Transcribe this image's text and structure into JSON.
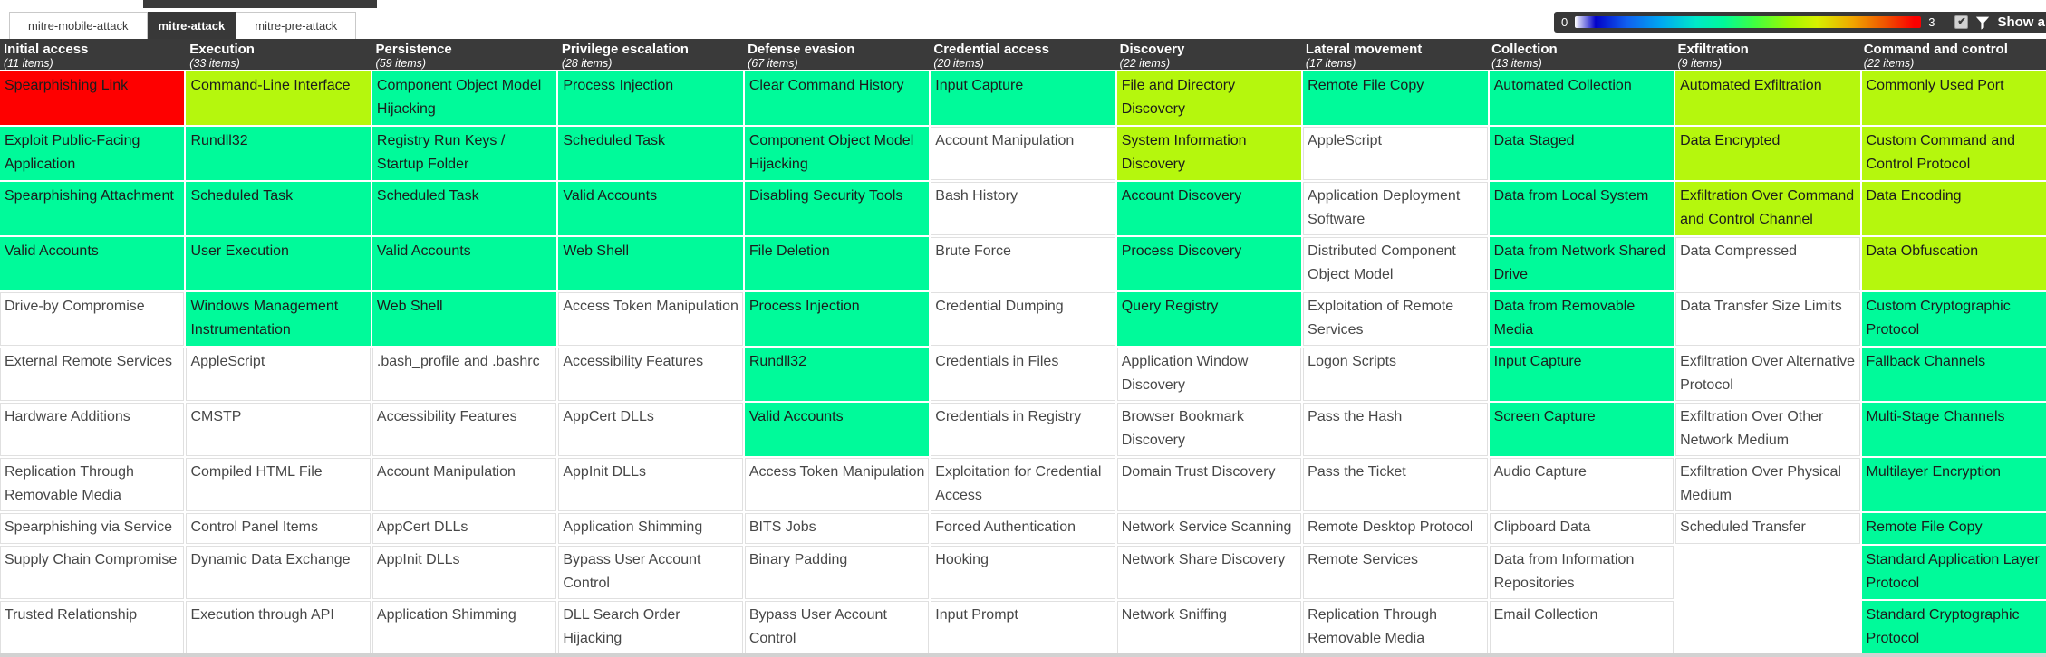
{
  "tabs": [
    {
      "label": "mitre-mobile-attack",
      "active": false
    },
    {
      "label": "mitre-attack",
      "active": true
    },
    {
      "label": "mitre-pre-attack",
      "active": false
    }
  ],
  "controls": {
    "gradient_min": "0",
    "gradient_max": "3",
    "checkbox_checked": "✔",
    "filter_icon": "funnel-icon",
    "show_all_label": "Show all"
  },
  "colors": {
    "red": "#fe0000",
    "green": "#00fa9a",
    "chartreuse": "#b5f70d",
    "white": "#ffffff",
    "header_bg": "#3a3a3a"
  },
  "matrix": {
    "columns": [
      {
        "name": "Initial access",
        "count": "(11 items)",
        "techniques": [
          {
            "label": "Spearphishing Link",
            "color": "r"
          },
          {
            "label": "Exploit Public-Facing Application",
            "color": "g"
          },
          {
            "label": "Spearphishing Attachment",
            "color": "g"
          },
          {
            "label": "Valid Accounts",
            "color": "g"
          },
          {
            "label": "Drive-by Compromise",
            "color": "w"
          },
          {
            "label": "External Remote Services",
            "color": "w"
          },
          {
            "label": "Hardware Additions",
            "color": "w"
          },
          {
            "label": "Replication Through Removable Media",
            "color": "w"
          },
          {
            "label": "Spearphishing via Service",
            "color": "w"
          },
          {
            "label": "Supply Chain Compromise",
            "color": "w"
          },
          {
            "label": "Trusted Relationship",
            "color": "w"
          }
        ]
      },
      {
        "name": "Execution",
        "count": "(33 items)",
        "techniques": [
          {
            "label": "Command-Line Interface",
            "color": "y"
          },
          {
            "label": "Rundll32",
            "color": "g"
          },
          {
            "label": "Scheduled Task",
            "color": "g"
          },
          {
            "label": "User Execution",
            "color": "g"
          },
          {
            "label": "Windows Management Instrumentation",
            "color": "g"
          },
          {
            "label": "AppleScript",
            "color": "w"
          },
          {
            "label": "CMSTP",
            "color": "w"
          },
          {
            "label": "Compiled HTML File",
            "color": "w"
          },
          {
            "label": "Control Panel Items",
            "color": "w"
          },
          {
            "label": "Dynamic Data Exchange",
            "color": "w"
          },
          {
            "label": "Execution through API",
            "color": "w"
          }
        ]
      },
      {
        "name": "Persistence",
        "count": "(59 items)",
        "techniques": [
          {
            "label": "Component Object Model Hijacking",
            "color": "g"
          },
          {
            "label": "Registry Run Keys / Startup Folder",
            "color": "g"
          },
          {
            "label": "Scheduled Task",
            "color": "g"
          },
          {
            "label": "Valid Accounts",
            "color": "g"
          },
          {
            "label": "Web Shell",
            "color": "g"
          },
          {
            "label": ".bash_profile and .bashrc",
            "color": "w"
          },
          {
            "label": "Accessibility Features",
            "color": "w"
          },
          {
            "label": "Account Manipulation",
            "color": "w"
          },
          {
            "label": "AppCert DLLs",
            "color": "w"
          },
          {
            "label": "AppInit DLLs",
            "color": "w"
          },
          {
            "label": "Application Shimming",
            "color": "w"
          }
        ]
      },
      {
        "name": "Privilege escalation",
        "count": "(28 items)",
        "techniques": [
          {
            "label": "Process Injection",
            "color": "g"
          },
          {
            "label": "Scheduled Task",
            "color": "g"
          },
          {
            "label": "Valid Accounts",
            "color": "g"
          },
          {
            "label": "Web Shell",
            "color": "g"
          },
          {
            "label": "Access Token Manipulation",
            "color": "w"
          },
          {
            "label": "Accessibility Features",
            "color": "w"
          },
          {
            "label": "AppCert DLLs",
            "color": "w"
          },
          {
            "label": "AppInit DLLs",
            "color": "w"
          },
          {
            "label": "Application Shimming",
            "color": "w"
          },
          {
            "label": "Bypass User Account Control",
            "color": "w"
          },
          {
            "label": "DLL Search Order Hijacking",
            "color": "w"
          }
        ]
      },
      {
        "name": "Defense evasion",
        "count": "(67 items)",
        "techniques": [
          {
            "label": "Clear Command History",
            "color": "g"
          },
          {
            "label": "Component Object Model Hijacking",
            "color": "g"
          },
          {
            "label": "Disabling Security Tools",
            "color": "g"
          },
          {
            "label": "File Deletion",
            "color": "g"
          },
          {
            "label": "Process Injection",
            "color": "g"
          },
          {
            "label": "Rundll32",
            "color": "g"
          },
          {
            "label": "Valid Accounts",
            "color": "g"
          },
          {
            "label": "Access Token Manipulation",
            "color": "w"
          },
          {
            "label": "BITS Jobs",
            "color": "w"
          },
          {
            "label": "Binary Padding",
            "color": "w"
          },
          {
            "label": "Bypass User Account Control",
            "color": "w"
          }
        ]
      },
      {
        "name": "Credential access",
        "count": "(20 items)",
        "techniques": [
          {
            "label": "Input Capture",
            "color": "g"
          },
          {
            "label": "Account Manipulation",
            "color": "w"
          },
          {
            "label": "Bash History",
            "color": "w"
          },
          {
            "label": "Brute Force",
            "color": "w"
          },
          {
            "label": "Credential Dumping",
            "color": "w"
          },
          {
            "label": "Credentials in Files",
            "color": "w"
          },
          {
            "label": "Credentials in Registry",
            "color": "w"
          },
          {
            "label": "Exploitation for Credential Access",
            "color": "w"
          },
          {
            "label": "Forced Authentication",
            "color": "w"
          },
          {
            "label": "Hooking",
            "color": "w"
          },
          {
            "label": "Input Prompt",
            "color": "w"
          }
        ]
      },
      {
        "name": "Discovery",
        "count": "(22 items)",
        "techniques": [
          {
            "label": "File and Directory Discovery",
            "color": "y"
          },
          {
            "label": "System Information Discovery",
            "color": "y"
          },
          {
            "label": "Account Discovery",
            "color": "g"
          },
          {
            "label": "Process Discovery",
            "color": "g"
          },
          {
            "label": "Query Registry",
            "color": "g"
          },
          {
            "label": "Application Window Discovery",
            "color": "w"
          },
          {
            "label": "Browser Bookmark Discovery",
            "color": "w"
          },
          {
            "label": "Domain Trust Discovery",
            "color": "w"
          },
          {
            "label": "Network Service Scanning",
            "color": "w"
          },
          {
            "label": "Network Share Discovery",
            "color": "w"
          },
          {
            "label": "Network Sniffing",
            "color": "w"
          }
        ]
      },
      {
        "name": "Lateral movement",
        "count": "(17 items)",
        "techniques": [
          {
            "label": "Remote File Copy",
            "color": "g"
          },
          {
            "label": "AppleScript",
            "color": "w"
          },
          {
            "label": "Application Deployment Software",
            "color": "w"
          },
          {
            "label": "Distributed Component Object Model",
            "color": "w"
          },
          {
            "label": "Exploitation of Remote Services",
            "color": "w"
          },
          {
            "label": "Logon Scripts",
            "color": "w"
          },
          {
            "label": "Pass the Hash",
            "color": "w"
          },
          {
            "label": "Pass the Ticket",
            "color": "w"
          },
          {
            "label": "Remote Desktop Protocol",
            "color": "w"
          },
          {
            "label": "Remote Services",
            "color": "w"
          },
          {
            "label": "Replication Through Removable Media",
            "color": "w"
          }
        ]
      },
      {
        "name": "Collection",
        "count": "(13 items)",
        "techniques": [
          {
            "label": "Automated Collection",
            "color": "g"
          },
          {
            "label": "Data Staged",
            "color": "g"
          },
          {
            "label": "Data from Local System",
            "color": "g"
          },
          {
            "label": "Data from Network Shared Drive",
            "color": "g"
          },
          {
            "label": "Data from Removable Media",
            "color": "g"
          },
          {
            "label": "Input Capture",
            "color": "g"
          },
          {
            "label": "Screen Capture",
            "color": "g"
          },
          {
            "label": "Audio Capture",
            "color": "w"
          },
          {
            "label": "Clipboard Data",
            "color": "w"
          },
          {
            "label": "Data from Information Repositories",
            "color": "w"
          },
          {
            "label": "Email Collection",
            "color": "w"
          }
        ]
      },
      {
        "name": "Exfiltration",
        "count": "(9 items)",
        "techniques": [
          {
            "label": "Automated Exfiltration",
            "color": "y"
          },
          {
            "label": "Data Encrypted",
            "color": "y"
          },
          {
            "label": "Exfiltration Over Command and Control Channel",
            "color": "y"
          },
          {
            "label": "Data Compressed",
            "color": "w"
          },
          {
            "label": "Data Transfer Size Limits",
            "color": "w"
          },
          {
            "label": "Exfiltration Over Alternative Protocol",
            "color": "w"
          },
          {
            "label": "Exfiltration Over Other Network Medium",
            "color": "w"
          },
          {
            "label": "Exfiltration Over Physical Medium",
            "color": "w"
          },
          {
            "label": "Scheduled Transfer",
            "color": "w"
          },
          {
            "label": "",
            "color": "e"
          },
          {
            "label": "",
            "color": "e"
          }
        ]
      },
      {
        "name": "Command and control",
        "count": "(22 items)",
        "techniques": [
          {
            "label": "Commonly Used Port",
            "color": "y"
          },
          {
            "label": "Custom Command and Control Protocol",
            "color": "y"
          },
          {
            "label": "Data Encoding",
            "color": "y"
          },
          {
            "label": "Data Obfuscation",
            "color": "y"
          },
          {
            "label": "Custom Cryptographic Protocol",
            "color": "g"
          },
          {
            "label": "Fallback Channels",
            "color": "g"
          },
          {
            "label": "Multi-Stage Channels",
            "color": "g"
          },
          {
            "label": "Multilayer Encryption",
            "color": "g"
          },
          {
            "label": "Remote File Copy",
            "color": "g"
          },
          {
            "label": "Standard Application Layer Protocol",
            "color": "g"
          },
          {
            "label": "Standard Cryptographic Protocol",
            "color": "g"
          }
        ]
      }
    ]
  }
}
